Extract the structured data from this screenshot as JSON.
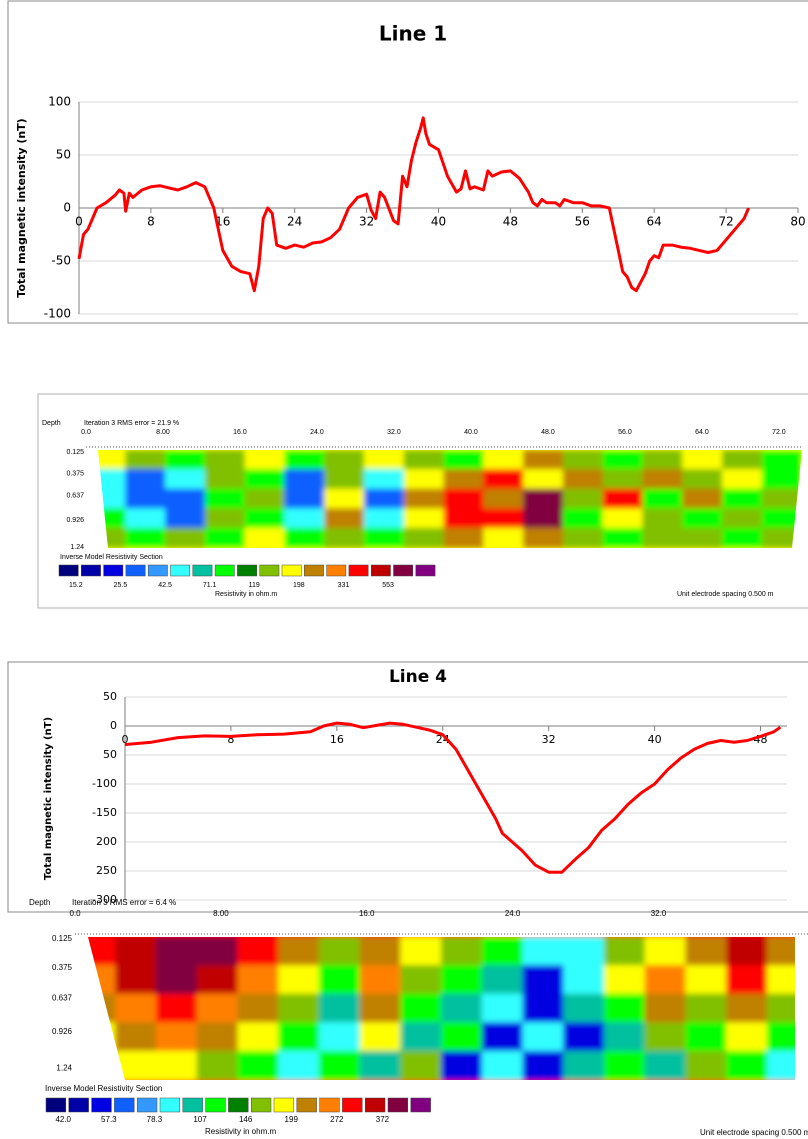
{
  "chart_data": [
    {
      "type": "line",
      "title": "Line 1",
      "ylabel": "Total magnetic intensity (nT)",
      "x": [
        0,
        0.5,
        1,
        2,
        3,
        4,
        4.5,
        5,
        5.2,
        5.6,
        6,
        7,
        8,
        9,
        10,
        11,
        12,
        13,
        14,
        15,
        16,
        17,
        18,
        19,
        19.5,
        20,
        20.5,
        21,
        21.5,
        22,
        23,
        24,
        25,
        26,
        27,
        28,
        29,
        30,
        31,
        32,
        32.5,
        33,
        33.5,
        34,
        35,
        35.5,
        36,
        36.5,
        37,
        37.5,
        38,
        38.3,
        38.6,
        39,
        40,
        41,
        42,
        42.5,
        43,
        43.5,
        44,
        45,
        45.5,
        46,
        47,
        48,
        49,
        50,
        50.5,
        51,
        51.5,
        52,
        53,
        53.5,
        54,
        55,
        56,
        57,
        58,
        59,
        60,
        60.5,
        61,
        61.5,
        62,
        63,
        63.5,
        64,
        64.5,
        65,
        66,
        67,
        68,
        69,
        70,
        71,
        72,
        73,
        74,
        74.5
      ],
      "values": [
        -48,
        -25,
        -20,
        0,
        5,
        12,
        17,
        14,
        -3,
        14,
        10,
        17,
        20,
        21,
        19,
        17,
        20,
        24,
        20,
        0,
        -40,
        -55,
        -60,
        -62,
        -78,
        -55,
        -10,
        0,
        -5,
        -35,
        -38,
        -35,
        -37,
        -33,
        -32,
        -28,
        -20,
        0,
        10,
        13,
        -2,
        -10,
        15,
        10,
        -12,
        -15,
        30,
        20,
        45,
        62,
        75,
        85,
        70,
        60,
        55,
        30,
        15,
        18,
        35,
        18,
        20,
        17,
        35,
        30,
        34,
        35,
        28,
        15,
        5,
        2,
        8,
        5,
        5,
        2,
        8,
        5,
        5,
        2,
        2,
        0,
        -40,
        -60,
        -65,
        -75,
        -78,
        -62,
        -50,
        -45,
        -47,
        -35,
        -35,
        -37,
        -38,
        -40,
        -42,
        -40,
        -30,
        -20,
        -10,
        0
      ],
      "color": "#ff0000",
      "xlim": [
        0,
        80
      ],
      "xticks": [
        0,
        8,
        16,
        24,
        32,
        40,
        48,
        56,
        64,
        72,
        80
      ],
      "ylim": [
        -100,
        100
      ],
      "yticks": [
        -100,
        -50,
        0,
        50,
        100
      ],
      "grid": true
    },
    {
      "type": "resistivity_section",
      "title": "Inverse Model Resistivity Section",
      "subtitle": "Iteration 3 RMS error = 21.9 %",
      "ylabel": "Depth",
      "legend_title": "Resistivity in ohm.m",
      "note": "Unit electrode spacing 0.500 m",
      "xlim": [
        0,
        74.4
      ],
      "xticks": [
        {
          "value": 0,
          "label": "0.0"
        },
        {
          "value": 8,
          "label": "8.00"
        },
        {
          "value": 16,
          "label": "16.0"
        },
        {
          "value": 24,
          "label": "24.0"
        },
        {
          "value": 32,
          "label": "32.0"
        },
        {
          "value": 40,
          "label": "40.0"
        },
        {
          "value": 48,
          "label": "48.0"
        },
        {
          "value": 56,
          "label": "56.0"
        },
        {
          "value": 64,
          "label": "64.0"
        },
        {
          "value": 72,
          "label": "72.0"
        }
      ],
      "ylim": [
        0.1,
        1.25
      ],
      "yticks": [
        0.125,
        0.375,
        0.637,
        0.926,
        1.24
      ],
      "values": [
        [
          180,
          130,
          90,
          130,
          180,
          90,
          130,
          180,
          130,
          90,
          180,
          260,
          130,
          90,
          130,
          180,
          130,
          90
        ],
        [
          45,
          30,
          45,
          130,
          90,
          30,
          130,
          45,
          180,
          260,
          400,
          180,
          260,
          130,
          260,
          130,
          180,
          90
        ],
        [
          45,
          30,
          30,
          90,
          130,
          30,
          180,
          30,
          260,
          400,
          260,
          700,
          130,
          400,
          90,
          260,
          90,
          130
        ],
        [
          90,
          45,
          30,
          130,
          90,
          45,
          260,
          45,
          180,
          400,
          400,
          700,
          90,
          180,
          130,
          90,
          130,
          90
        ],
        [
          130,
          90,
          130,
          90,
          180,
          90,
          130,
          90,
          130,
          260,
          180,
          260,
          130,
          90,
          130,
          130,
          90,
          130
        ]
      ],
      "colors": [
        "#00007f",
        "#0000a8",
        "#0000e0",
        "#1060ff",
        "#3399ff",
        "#33ffff",
        "#00c0a0",
        "#00ff00",
        "#008000",
        "#80c000",
        "#ffff00",
        "#c08000",
        "#ff8000",
        "#ff0000",
        "#c00000",
        "#800040",
        "#800080"
      ],
      "legend_labels": [
        15.2,
        25.5,
        42.5,
        71.1,
        119,
        198,
        331,
        553
      ]
    },
    {
      "type": "line",
      "title": "Line 4",
      "ylabel": "Total magnetic intensity (nT)",
      "x": [
        0,
        2,
        4,
        6,
        8,
        10,
        12,
        14,
        15,
        16,
        17,
        18,
        20,
        21,
        22,
        23,
        24,
        25,
        26,
        27,
        28,
        28.5,
        29,
        30,
        31,
        32,
        33,
        34,
        35,
        36,
        37,
        38,
        39,
        40,
        41,
        42,
        43,
        44,
        45,
        46,
        47,
        48,
        49,
        49.5
      ],
      "values": [
        -32,
        -28,
        -20,
        -17,
        -18,
        -15,
        -14,
        -10,
        0,
        5,
        3,
        -3,
        5,
        3,
        -2,
        -7,
        -15,
        -40,
        -80,
        -120,
        -160,
        -185,
        -195,
        -215,
        -240,
        -252,
        -252,
        -230,
        -210,
        -180,
        -160,
        -135,
        -115,
        -100,
        -75,
        -55,
        -40,
        -30,
        -25,
        -28,
        -25,
        -18,
        -10,
        -2
      ],
      "color": "#ff0000",
      "xlim": [
        0,
        50
      ],
      "xticks": [
        0,
        8,
        16,
        24,
        32,
        40,
        48
      ],
      "ylim": [
        -300,
        50
      ],
      "yticks": [
        -300,
        {
          "value": -250,
          "label": "250"
        },
        {
          "value": -200,
          "label": "200"
        },
        -150,
        -100,
        {
          "value": -50,
          "label": "50"
        },
        0,
        50
      ],
      "grid": true
    },
    {
      "type": "resistivity_section",
      "title": "Inverse Model Resistivity Section",
      "subtitle": "Iteration 3 RMS error = 6.4 %",
      "ylabel": "Depth",
      "legend_title": "Resistivity in ohm.m",
      "note": "Unit electrode spacing 0.500 m",
      "xlim": [
        0,
        40.2
      ],
      "xticks": [
        {
          "value": 0,
          "label": "0.0"
        },
        {
          "value": 8,
          "label": "8.00"
        },
        {
          "value": 16,
          "label": "16.0"
        },
        {
          "value": 24,
          "label": "24.0"
        },
        {
          "value": 32,
          "label": "32.0"
        }
      ],
      "ylim": [
        0.11,
        1.34
      ],
      "yticks": [
        0.125,
        0.375,
        0.637,
        0.926,
        1.24
      ],
      "values": [
        [
          300,
          350,
          420,
          420,
          300,
          220,
          160,
          220,
          180,
          160,
          120,
          80,
          80,
          160,
          180,
          220,
          350,
          220
        ],
        [
          260,
          350,
          420,
          350,
          260,
          180,
          120,
          260,
          160,
          120,
          95,
          50,
          80,
          180,
          260,
          180,
          300,
          180
        ],
        [
          220,
          260,
          300,
          260,
          220,
          160,
          95,
          220,
          120,
          95,
          80,
          50,
          95,
          120,
          220,
          160,
          220,
          160
        ],
        [
          180,
          220,
          260,
          220,
          180,
          120,
          80,
          180,
          95,
          120,
          50,
          80,
          50,
          95,
          160,
          120,
          180,
          120
        ],
        [
          160,
          180,
          180,
          160,
          120,
          80,
          120,
          95,
          160,
          50,
          80,
          50,
          95,
          120,
          95,
          160,
          120,
          80
        ]
      ],
      "colors": [
        "#00007f",
        "#0000a8",
        "#0000e0",
        "#1060ff",
        "#3399ff",
        "#33ffff",
        "#00c0a0",
        "#00ff00",
        "#008000",
        "#80c000",
        "#ffff00",
        "#c08000",
        "#ff8000",
        "#ff0000",
        "#c00000",
        "#800040",
        "#800080"
      ],
      "legend_labels": [
        {
          "value": 42,
          "label": "42.0"
        },
        57.3,
        78.3,
        107,
        146,
        199,
        272,
        372
      ]
    }
  ]
}
